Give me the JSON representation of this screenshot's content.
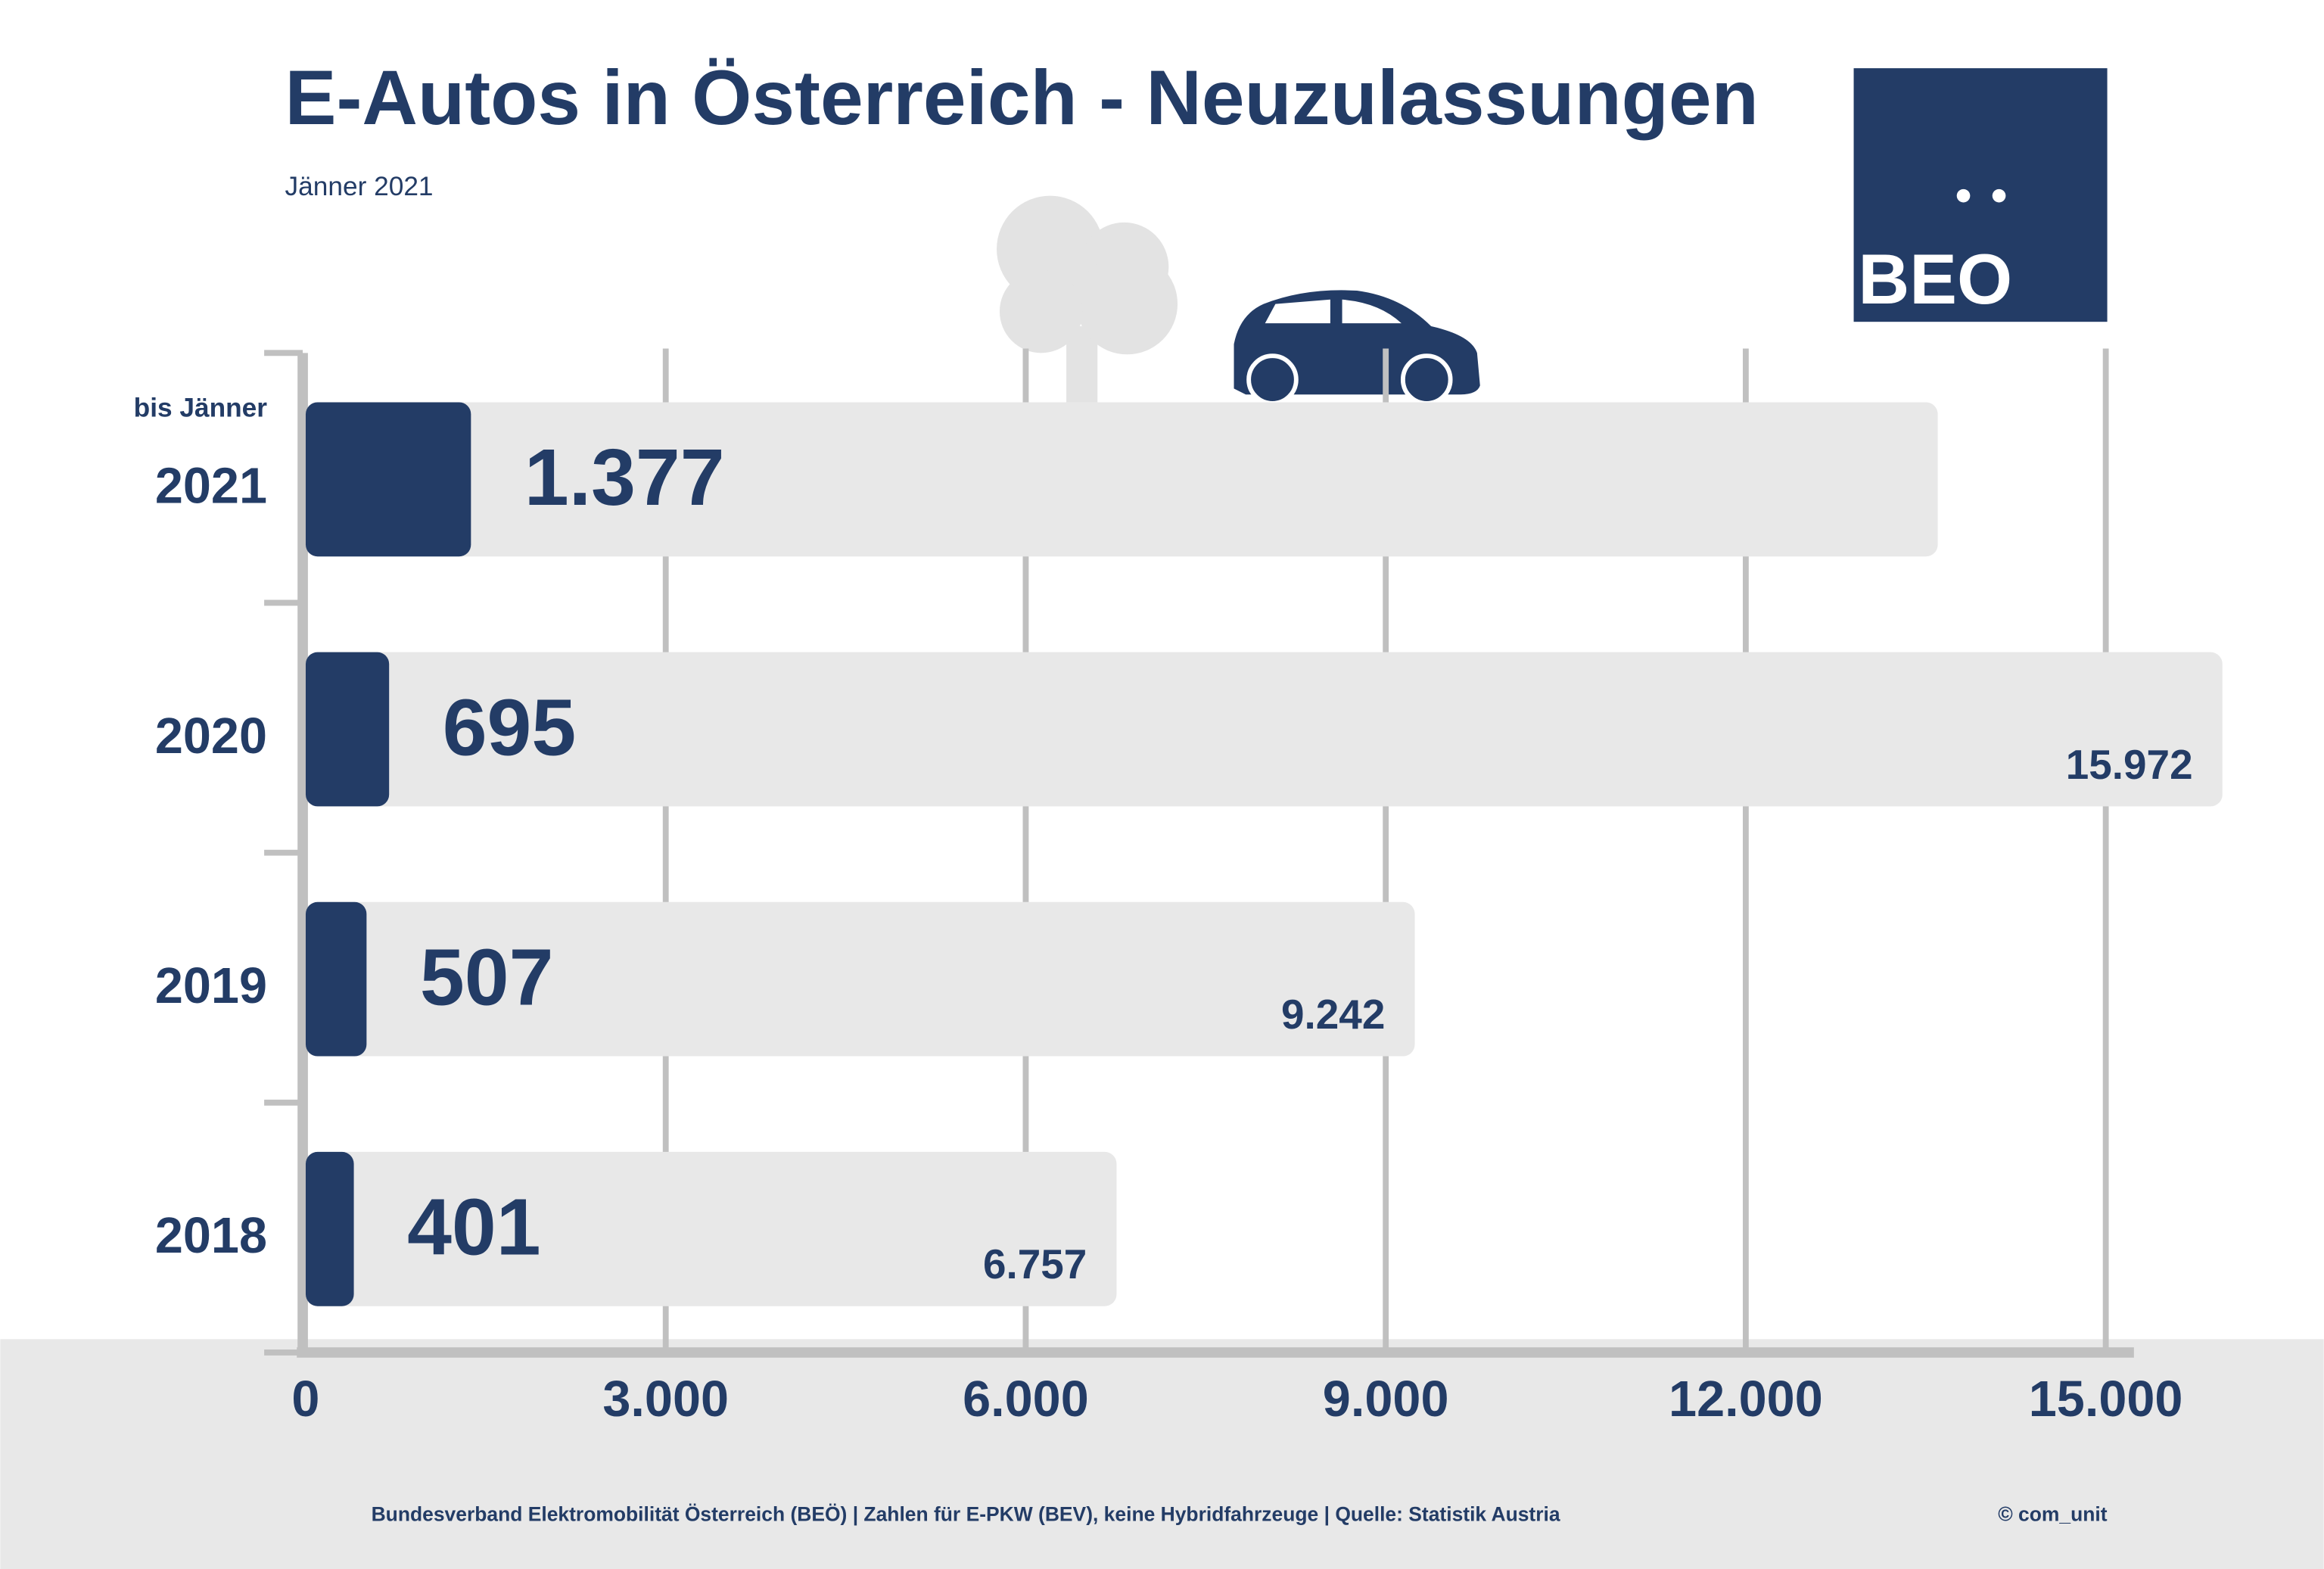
{
  "chart_data": {
    "type": "bar",
    "orientation": "horizontal",
    "title": "E-Autos in Österreich - Neuzulassungen",
    "subtitle": "Jänner 2021",
    "category_note": "bis Jänner",
    "categories": [
      "2021",
      "2020",
      "2019",
      "2018"
    ],
    "series": [
      {
        "color": "#e8e8e8",
        "values": [
          13600,
          15972,
          9242,
          6757
        ],
        "value_labels": [
          null,
          "15.972",
          "9.242",
          "6.757"
        ]
      },
      {
        "color": "#233c66",
        "values": [
          1377,
          695,
          507,
          401
        ],
        "value_labels": [
          "1.377",
          "695",
          "507",
          "401"
        ]
      }
    ],
    "xlim": [
      0,
      15000
    ],
    "xticks": [
      0,
      {
        "value": 3000,
        "label": "3.000"
      },
      {
        "value": 6000,
        "label": "6.000"
      },
      {
        "value": 9000,
        "label": "9.000"
      },
      {
        "value": 12000,
        "label": "12.000"
      },
      {
        "value": 15000,
        "label": "15.000"
      }
    ],
    "grid": true,
    "logo": "BEO",
    "footer": "Bundesverband Elektromobilität Österreich (BEÖ) | Zahlen für E-PKW (BEV), keine Hybridfahrzeuge | Quelle: Statistik Austria",
    "credit": "© com_unit"
  }
}
